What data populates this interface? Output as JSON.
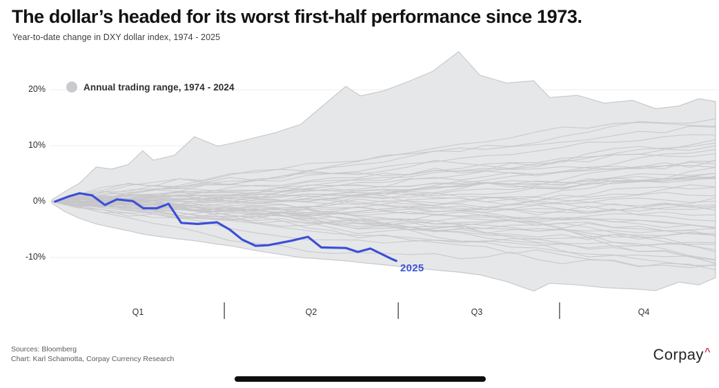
{
  "header": {
    "title": "The dollar’s headed for its worst first-half performance since 1973.",
    "subtitle": "Year-to-date change in DXY dollar index, 1974 - 2025"
  },
  "legend": {
    "label": "Annual trading range, 1974 - 2024"
  },
  "axes": {
    "y_ticks": [
      "20%",
      "10%",
      "0%",
      "-10%"
    ],
    "x_ticks": [
      "Q1",
      "Q2",
      "Q3",
      "Q4"
    ]
  },
  "footer": {
    "sources": "Sources: Bloomberg",
    "credit": "Chart: Karl Schamotta, Corpay Currency Research",
    "brand": "Corpay",
    "brand_caret": "^"
  },
  "colors": {
    "highlight_line": "#3b4fd6",
    "range_fill": "#e6e7e9",
    "range_stroke": "#c8c9cc",
    "year_line": "#c6c7ca",
    "grid": "#ededee",
    "legend_swatch": "#c9cacd",
    "tick": "#4d4d4d",
    "brand_caret": "#d6405f",
    "bottom_bar": "#0d0d0d"
  },
  "chart_data": {
    "type": "line",
    "title": "The dollar’s headed for its worst first-half performance since 1973.",
    "subtitle": "Year-to-date change in DXY dollar index, 1974 - 2025",
    "ylabel": "Year-to-date change in DXY dollar index (%)",
    "ylim": [
      -17,
      28
    ],
    "y_tick_values_pct": [
      20,
      10,
      0,
      -10
    ],
    "x_categories": [
      "Q1",
      "Q2",
      "Q3",
      "Q4"
    ],
    "quarter_separators_frac": [
      0.26,
      0.522,
      0.765
    ],
    "grid": "horizontal-faint",
    "legend_entry": "Annual trading range, 1974 - 2024",
    "background_years": {
      "range": "1974 - 2024",
      "count": 51
    },
    "envelope": {
      "frac": [
        0,
        0.02,
        0.042,
        0.067,
        0.09,
        0.115,
        0.137,
        0.153,
        0.185,
        0.215,
        0.25,
        0.274,
        0.305,
        0.336,
        0.375,
        0.4,
        0.443,
        0.465,
        0.5,
        0.54,
        0.574,
        0.613,
        0.645,
        0.685,
        0.726,
        0.75,
        0.792,
        0.833,
        0.875,
        0.91,
        0.945,
        0.975,
        1.0
      ],
      "top_pct": [
        0.3,
        1.8,
        3.3,
        6.2,
        5.8,
        6.6,
        9.1,
        7.4,
        8.3,
        11.6,
        9.9,
        10.5,
        11.4,
        12.3,
        13.8,
        16.3,
        20.6,
        18.9,
        19.8,
        21.6,
        23.3,
        26.8,
        22.6,
        21.2,
        21.6,
        18.6,
        19.0,
        17.6,
        18.1,
        16.6,
        17.1,
        18.4,
        17.9
      ],
      "bottom_pct": [
        -0.3,
        -1.8,
        -3.0,
        -4.0,
        -4.6,
        -5.2,
        -5.8,
        -6.1,
        -6.6,
        -7.0,
        -7.6,
        -8.0,
        -8.7,
        -9.3,
        -10.0,
        -10.2,
        -10.6,
        -10.9,
        -11.3,
        -11.8,
        -12.2,
        -12.6,
        -13.1,
        -14.3,
        -16.0,
        -14.6,
        -14.9,
        -15.4,
        -15.6,
        -15.9,
        -14.4,
        -14.9,
        -13.6
      ]
    },
    "series": [
      {
        "name": "2025",
        "frac": [
          0.005,
          0.025,
          0.042,
          0.061,
          0.08,
          0.098,
          0.122,
          0.138,
          0.158,
          0.176,
          0.195,
          0.22,
          0.249,
          0.268,
          0.287,
          0.307,
          0.326,
          0.361,
          0.386,
          0.406,
          0.443,
          0.461,
          0.48,
          0.511,
          0.519
        ],
        "pct": [
          0.0,
          0.9,
          1.5,
          1.1,
          -0.6,
          0.4,
          0.1,
          -1.2,
          -1.2,
          -0.4,
          -3.8,
          -4.0,
          -3.7,
          -5.0,
          -6.8,
          -7.9,
          -7.8,
          -7.0,
          -6.3,
          -8.2,
          -8.3,
          -9.0,
          -8.4,
          -10.2,
          -10.6
        ]
      }
    ]
  }
}
